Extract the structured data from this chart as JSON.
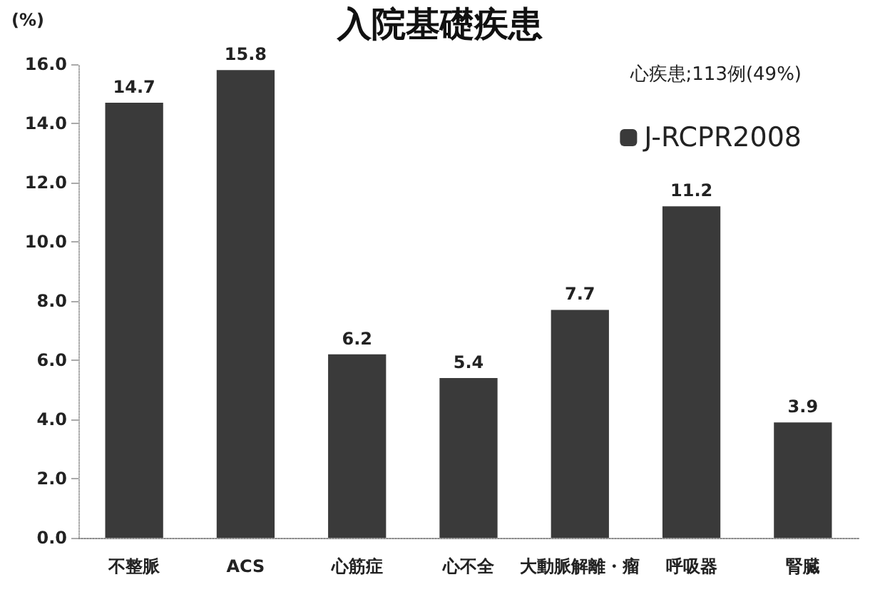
{
  "chart_data": {
    "type": "bar",
    "title": "入院基礎疾患",
    "ylabel": "(%)",
    "categories": [
      "不整脈",
      "ACS",
      "心筋症",
      "心不全",
      "大動脈解離・瘤",
      "呼吸器",
      "腎臓"
    ],
    "series": [
      {
        "name": "J-RCPR2008",
        "color": "#3a3a3a",
        "values": [
          14.7,
          15.8,
          6.2,
          5.4,
          7.7,
          11.2,
          3.9
        ]
      }
    ],
    "ylim": [
      0,
      16
    ],
    "yticks": [
      {
        "value": 0,
        "label": "0.0"
      },
      {
        "value": 2,
        "label": "2.0"
      },
      {
        "value": 4,
        "label": "4.0"
      },
      {
        "value": 6,
        "label": "6.0"
      },
      {
        "value": 8,
        "label": "8.0"
      },
      {
        "value": 10,
        "label": "10.0"
      },
      {
        "value": 12,
        "label": "12.0"
      },
      {
        "value": 14,
        "label": "14.0"
      },
      {
        "value": 16,
        "label": "16.0"
      }
    ],
    "annotations": [
      "心疾患;113例(49%)"
    ],
    "data_labels": true,
    "grid": false,
    "legend": "top right"
  }
}
